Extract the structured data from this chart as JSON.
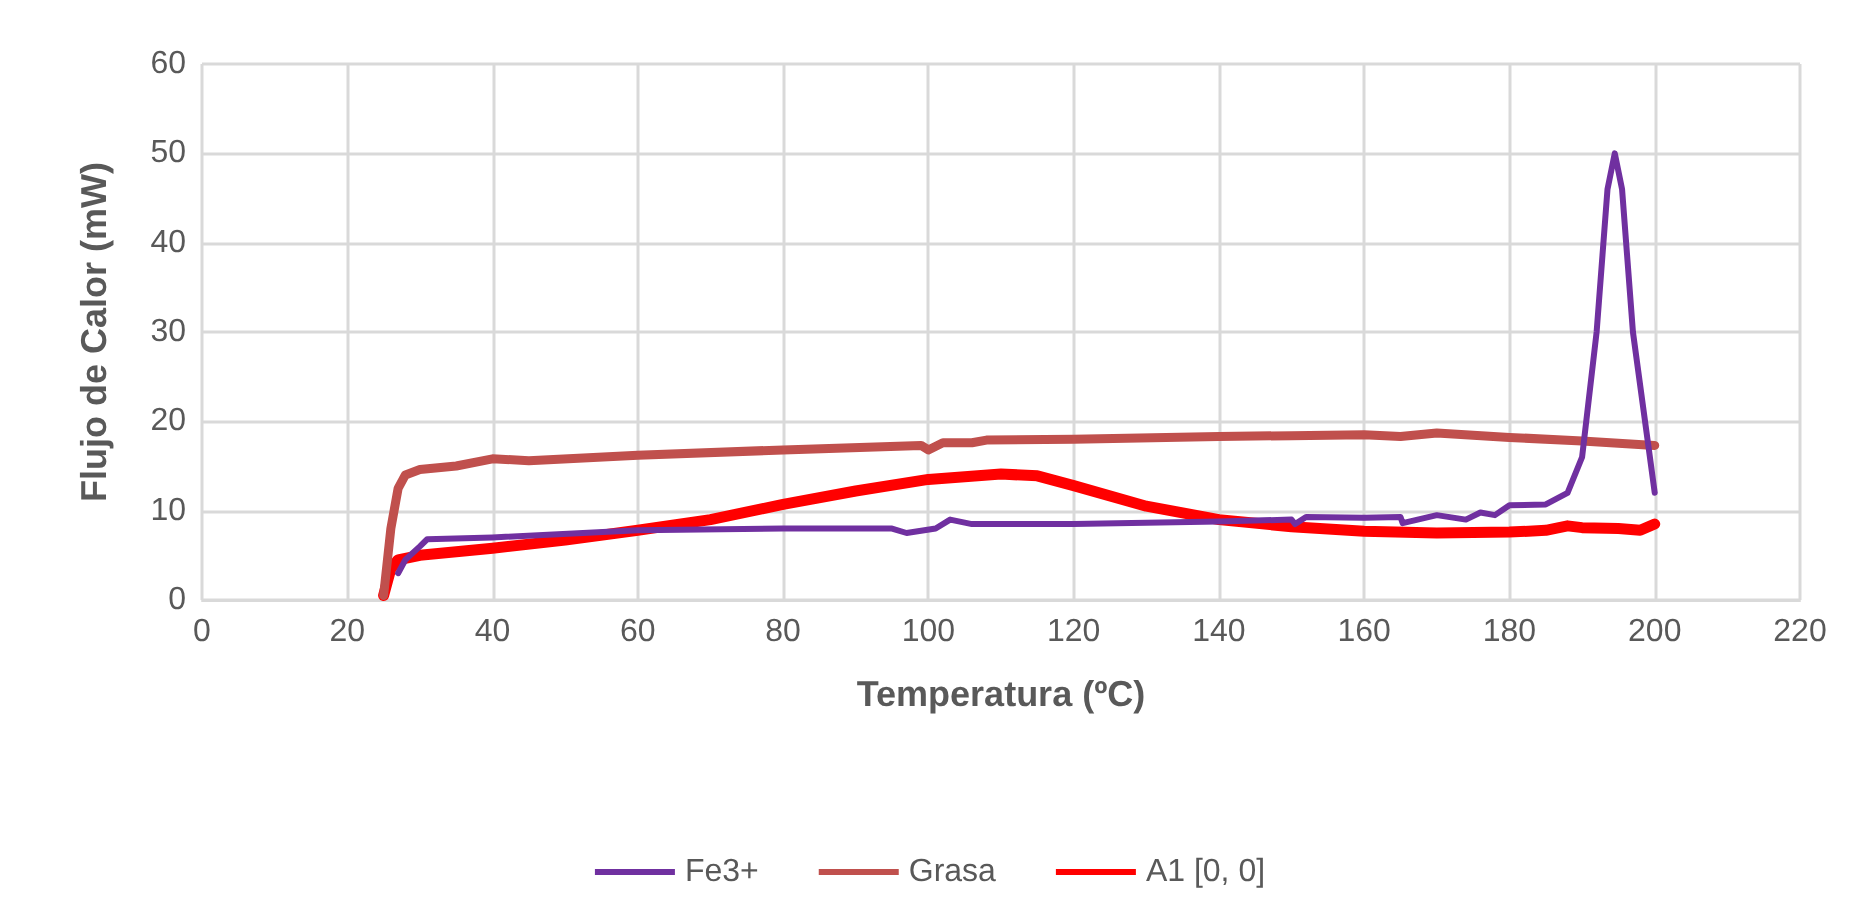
{
  "chart_data": {
    "type": "line",
    "xlabel": "Temperatura (ºC)",
    "ylabel": "Flujo de Calor (mW)",
    "xlim": [
      0,
      220
    ],
    "xticks": [
      0,
      20,
      40,
      60,
      80,
      100,
      120,
      140,
      160,
      180,
      200,
      220
    ],
    "ylim": [
      0,
      60
    ],
    "yticks": [
      0,
      10,
      20,
      30,
      40,
      50,
      60
    ],
    "grid": true,
    "legend": "bottom",
    "marker": "none",
    "line_style": "solid",
    "series": [
      {
        "name": "Fe3+",
        "color": "#7030a0",
        "x": [
          27,
          28,
          30,
          31,
          40,
          60,
          80,
          95,
          97,
          101,
          103,
          106,
          120,
          140,
          150,
          150.5,
          152,
          160,
          165,
          165.3,
          170,
          174,
          176,
          178,
          180,
          185,
          188,
          190,
          192,
          193.5,
          194.5,
          195.5,
          197,
          199,
          200
        ],
        "values": [
          3,
          4.5,
          6,
          6.8,
          7,
          7.8,
          8,
          8,
          7.5,
          8,
          9,
          8.5,
          8.5,
          8.8,
          9,
          8.5,
          9.3,
          9.2,
          9.3,
          8.6,
          9.5,
          9,
          9.8,
          9.5,
          10.6,
          10.7,
          12,
          16,
          30,
          46,
          50,
          46,
          30,
          18,
          12
        ]
      },
      {
        "name": "Grasa",
        "color": "#c0504d",
        "x": [
          25,
          26,
          27,
          28,
          30,
          35,
          40,
          45,
          60,
          80,
          99,
          100,
          102,
          106,
          108,
          120,
          140,
          150,
          160,
          165,
          170,
          180,
          190,
          200
        ],
        "values": [
          0.5,
          8,
          12.5,
          14,
          14.6,
          15,
          15.8,
          15.6,
          16.2,
          16.8,
          17.3,
          16.8,
          17.6,
          17.6,
          17.9,
          18,
          18.3,
          18.4,
          18.5,
          18.3,
          18.7,
          18.2,
          17.8,
          17.3
        ]
      },
      {
        "name": "A1 [0, 0]",
        "color": "#ff0000",
        "x": [
          25,
          26,
          27,
          30,
          40,
          50,
          60,
          70,
          80,
          90,
          100,
          110,
          115,
          120,
          130,
          140,
          150,
          160,
          170,
          180,
          185,
          188,
          190,
          195,
          198,
          200
        ],
        "values": [
          0.5,
          3.5,
          4.5,
          5,
          5.8,
          6.7,
          7.8,
          9,
          10.7,
          12.2,
          13.5,
          14.1,
          13.9,
          12.8,
          10.5,
          9,
          8.2,
          7.7,
          7.5,
          7.6,
          7.8,
          8.3,
          8.1,
          8,
          7.8,
          8.5
        ]
      }
    ]
  }
}
